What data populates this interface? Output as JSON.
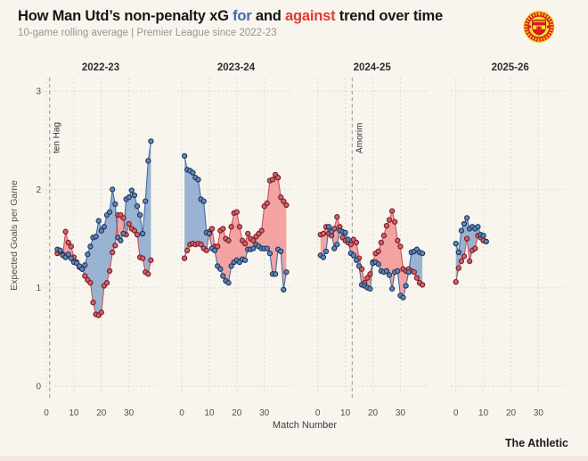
{
  "header": {
    "title_part1": "How Man Utd’s non-penalty xG ",
    "title_for": "for",
    "title_and": " and ",
    "title_against": "against",
    "title_part2": " trend over time",
    "subtitle": "10-game rolling average | Premier League since 2022-23"
  },
  "footer": {
    "brand": "The Athletic"
  },
  "branding": {
    "club_crest": "manchester-united-crest"
  },
  "colors": {
    "background": "#f7f5ee",
    "title_for_blue": "#3a6cb3",
    "title_against_red": "#e03c31",
    "area_for": "#93accf",
    "area_against": "#f29b9b",
    "line_for": "#3f6da8",
    "line_against": "#cc4f58",
    "dot_for_fill": "#5d87bb",
    "dot_for_stroke": "#1d3354",
    "dot_against_fill": "#d75f66",
    "dot_against_stroke": "#701b26",
    "grid": "#d2cfc6",
    "manager_line": "#9a9a9a",
    "crest_red": "#da1a27",
    "crest_yellow": "#fbe122",
    "bottom_strip": "#f5e6e0"
  },
  "chart_data": {
    "type": "area",
    "title": "How Man Utd's non-penalty xG for and against trend over time",
    "subtitle": "10-game rolling average | Premier League since 2022-23",
    "xlabel": "Match Number",
    "ylabel": "Expected Goals per Game",
    "ylim": [
      0,
      3.2
    ],
    "yticks": [
      0,
      1,
      2,
      3
    ],
    "panel_xticks": [
      0,
      10,
      20,
      30
    ],
    "grid": "dotted",
    "legend_position": "none (encoded in title words)",
    "series_names": [
      "npxG for (rolling avg)",
      "npxG against (rolling avg)"
    ],
    "panels": [
      {
        "season": "2022-23",
        "start_match": 4,
        "manager_change": {
          "label": "ten Hag",
          "match": 1.2
        },
        "xg_for": [
          1.39,
          1.38,
          1.33,
          1.31,
          1.34,
          1.3,
          1.26,
          1.25,
          1.22,
          1.19,
          1.23,
          1.34,
          1.42,
          1.51,
          1.52,
          1.68,
          1.58,
          1.62,
          1.74,
          1.77,
          2.0,
          1.85,
          1.51,
          1.48,
          1.55,
          1.9,
          1.92,
          1.99,
          1.94,
          1.83,
          1.74,
          1.55,
          1.88,
          2.29,
          2.49
        ],
        "xg_against": [
          1.35,
          1.37,
          1.34,
          1.57,
          1.46,
          1.42,
          1.31,
          1.26,
          1.21,
          1.19,
          1.12,
          1.08,
          1.05,
          0.85,
          0.73,
          0.72,
          0.75,
          1.02,
          1.05,
          1.17,
          1.36,
          1.43,
          1.74,
          1.74,
          1.71,
          1.54,
          1.65,
          1.6,
          1.58,
          1.54,
          1.31,
          1.3,
          1.16,
          1.14,
          1.28
        ]
      },
      {
        "season": "2023-24",
        "start_match": 1,
        "manager_change": null,
        "xg_for": [
          2.34,
          2.2,
          2.19,
          2.17,
          2.12,
          2.1,
          1.9,
          1.88,
          1.56,
          1.55,
          1.4,
          1.38,
          1.22,
          1.19,
          1.12,
          1.07,
          1.05,
          1.22,
          1.26,
          1.28,
          1.26,
          1.29,
          1.28,
          1.39,
          1.39,
          1.4,
          1.44,
          1.42,
          1.4,
          1.4,
          1.4,
          1.35,
          1.14,
          1.14,
          1.39,
          1.37,
          0.98,
          1.16
        ],
        "xg_against": [
          1.3,
          1.38,
          1.44,
          1.45,
          1.44,
          1.45,
          1.44,
          1.4,
          1.38,
          1.57,
          1.6,
          1.42,
          1.42,
          1.58,
          1.6,
          1.5,
          1.48,
          1.62,
          1.76,
          1.77,
          1.62,
          1.48,
          1.45,
          1.55,
          1.5,
          1.48,
          1.52,
          1.55,
          1.58,
          1.83,
          1.86,
          2.09,
          2.1,
          2.15,
          2.12,
          1.92,
          1.88,
          1.84
        ]
      },
      {
        "season": "2024-25",
        "start_match": 1,
        "manager_change": {
          "label": "Amorim",
          "match": 12.5
        },
        "xg_for": [
          1.33,
          1.31,
          1.37,
          1.62,
          1.57,
          1.4,
          1.44,
          1.58,
          1.57,
          1.56,
          1.49,
          1.35,
          1.33,
          1.28,
          1.22,
          1.03,
          1.02,
          1.0,
          0.99,
          1.25,
          1.26,
          1.24,
          1.17,
          1.16,
          1.17,
          1.13,
          0.99,
          1.16,
          1.17,
          0.92,
          0.9,
          1.02,
          1.16,
          1.36,
          1.37,
          1.39,
          1.36,
          1.35
        ],
        "xg_against": [
          1.54,
          1.55,
          1.62,
          1.55,
          1.53,
          1.6,
          1.72,
          1.62,
          1.51,
          1.48,
          1.46,
          1.44,
          1.49,
          1.46,
          1.3,
          1.19,
          1.05,
          1.1,
          1.14,
          1.26,
          1.35,
          1.37,
          1.46,
          1.53,
          1.63,
          1.69,
          1.78,
          1.67,
          1.48,
          1.42,
          1.19,
          1.17,
          1.19,
          1.17,
          1.16,
          1.1,
          1.05,
          1.03
        ]
      },
      {
        "season": "2025-26",
        "start_match": 0,
        "manager_change": null,
        "xg_for": [
          1.45,
          1.36,
          1.58,
          1.65,
          1.71,
          1.6,
          1.62,
          1.6,
          1.62,
          1.54,
          1.53,
          1.47
        ],
        "xg_against": [
          1.06,
          1.2,
          1.27,
          1.32,
          1.5,
          1.27,
          1.38,
          1.4,
          1.53,
          1.51,
          1.48,
          1.47
        ]
      }
    ]
  }
}
